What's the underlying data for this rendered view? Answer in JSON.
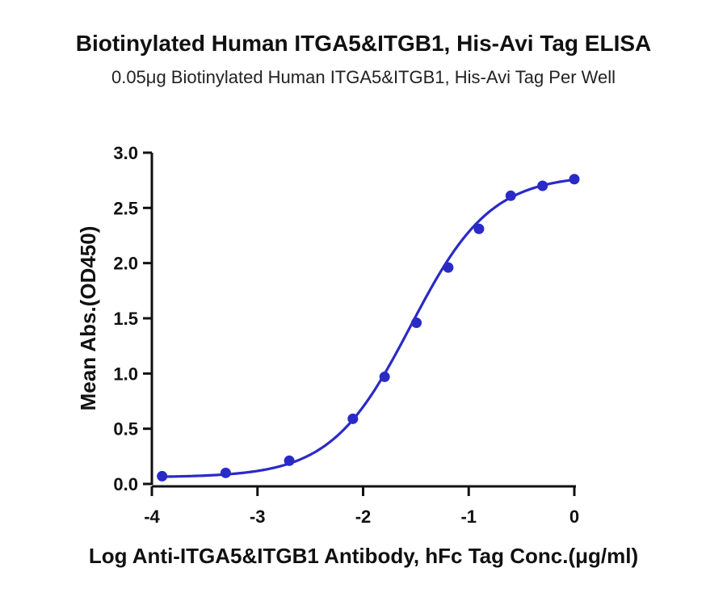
{
  "chart_data": {
    "type": "scatter",
    "title": "Biotinylated Human ITGA5&ITGB1, His-Avi Tag ELISA",
    "subtitle": "0.05μg Biotinylated Human ITGA5&ITGB1, His-Avi Tag Per Well",
    "xlabel": "Log Anti-ITGA5&ITGB1 Antibody, hFc Tag Conc.(μg/ml)",
    "ylabel": "Mean Abs.(OD450)",
    "xlim": [
      -4,
      0
    ],
    "ylim": [
      0,
      3
    ],
    "x_ticks": [
      "-4",
      "-3",
      "-2",
      "-1",
      "0"
    ],
    "y_ticks": [
      "0.0",
      "0.5",
      "1.0",
      "1.5",
      "2.0",
      "2.5",
      "3.0"
    ],
    "grid": false,
    "color": "#2a2ac8",
    "series": [
      {
        "x": [
          -3.903,
          -3.301,
          -2.699,
          -2.097,
          -1.796,
          -1.495,
          -1.194,
          -0.903,
          -0.602,
          -0.301,
          0.0
        ],
        "y": [
          0.07,
          0.1,
          0.21,
          0.59,
          0.97,
          1.46,
          1.96,
          2.31,
          2.61,
          2.7,
          2.76
        ]
      }
    ],
    "fit_curve": {
      "model": "4PL",
      "bottom": 0.06,
      "top": 2.8,
      "logEC50": -1.55,
      "hill": 1.15
    }
  }
}
